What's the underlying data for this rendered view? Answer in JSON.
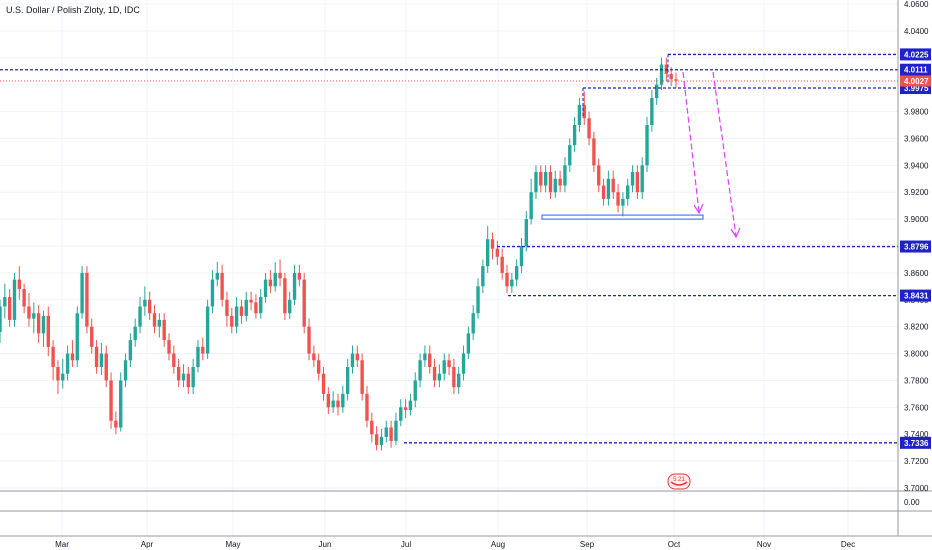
{
  "chart_data": {
    "type": "candlestick",
    "title": "U.S. Dollar / Polish Zloty, 1D, IDC",
    "ylim": [
      3.7,
      4.06
    ],
    "y_ticks": [
      "4.0600",
      "4.0400",
      "3.9800",
      "3.9600",
      "3.9400",
      "3.9200",
      "3.9000",
      "3.8600",
      "3.8400",
      "3.8200",
      "3.8000",
      "3.7800",
      "3.7600",
      "3.7400",
      "3.7200",
      "3.7000"
    ],
    "sub_tick": "0.00",
    "x_labels": [
      "Mar",
      "Apr",
      "May",
      "Jun",
      "Jul",
      "Aug",
      "Sep",
      "Oct",
      "Nov",
      "Dec"
    ],
    "current_price": "4.0027",
    "levels": [
      {
        "value": 4.0225,
        "label": "4.0225"
      },
      {
        "value": 4.0111,
        "label": "4.0111"
      },
      {
        "value": 3.9975,
        "label": "3.9975"
      },
      {
        "value": 3.8796,
        "label": "3.8796"
      },
      {
        "value": 3.8431,
        "label": "3.8431"
      },
      {
        "value": 3.7336,
        "label": "3.7336"
      }
    ],
    "support_box": {
      "low": 3.9,
      "high": 3.903
    },
    "event_label": "5 21",
    "candles": [
      [
        3.816,
        3.835,
        3.84,
        3.808
      ],
      [
        3.835,
        3.842,
        3.852,
        3.826
      ],
      [
        3.842,
        3.825,
        3.848,
        3.82
      ],
      [
        3.825,
        3.855,
        3.86,
        3.82
      ],
      [
        3.855,
        3.848,
        3.865,
        3.84
      ],
      [
        3.848,
        3.835,
        3.852,
        3.83
      ],
      [
        3.835,
        3.826,
        3.845,
        3.82
      ],
      [
        3.826,
        3.83,
        3.838,
        3.815
      ],
      [
        3.83,
        3.815,
        3.836,
        3.808
      ],
      [
        3.815,
        3.828,
        3.832,
        3.805
      ],
      [
        3.828,
        3.805,
        3.835,
        3.798
      ],
      [
        3.805,
        3.79,
        3.81,
        3.78
      ],
      [
        3.79,
        3.78,
        3.795,
        3.77
      ],
      [
        3.78,
        3.785,
        3.796,
        3.774
      ],
      [
        3.785,
        3.8,
        3.806,
        3.78
      ],
      [
        3.8,
        3.795,
        3.81,
        3.79
      ],
      [
        3.795,
        3.83,
        3.835,
        3.79
      ],
      [
        3.83,
        3.86,
        3.865,
        3.826
      ],
      [
        3.86,
        3.82,
        3.865,
        3.815
      ],
      [
        3.82,
        3.805,
        3.826,
        3.8
      ],
      [
        3.805,
        3.79,
        3.81,
        3.785
      ],
      [
        3.79,
        3.8,
        3.808,
        3.784
      ],
      [
        3.8,
        3.78,
        3.806,
        3.775
      ],
      [
        3.78,
        3.75,
        3.786,
        3.744
      ],
      [
        3.75,
        3.745,
        3.757,
        3.74
      ],
      [
        3.745,
        3.78,
        3.786,
        3.742
      ],
      [
        3.78,
        3.795,
        3.8,
        3.775
      ],
      [
        3.795,
        3.81,
        3.815,
        3.79
      ],
      [
        3.81,
        3.82,
        3.826,
        3.805
      ],
      [
        3.82,
        3.835,
        3.842,
        3.815
      ],
      [
        3.835,
        3.84,
        3.85,
        3.828
      ],
      [
        3.84,
        3.83,
        3.846,
        3.825
      ],
      [
        3.83,
        3.82,
        3.836,
        3.815
      ],
      [
        3.82,
        3.825,
        3.83,
        3.812
      ],
      [
        3.825,
        3.81,
        3.83,
        3.805
      ],
      [
        3.81,
        3.8,
        3.815,
        3.795
      ],
      [
        3.8,
        3.79,
        3.806,
        3.785
      ],
      [
        3.79,
        3.78,
        3.796,
        3.775
      ],
      [
        3.78,
        3.785,
        3.792,
        3.775
      ],
      [
        3.785,
        3.775,
        3.79,
        3.77
      ],
      [
        3.775,
        3.79,
        3.796,
        3.77
      ],
      [
        3.79,
        3.805,
        3.81,
        3.786
      ],
      [
        3.805,
        3.8,
        3.812,
        3.795
      ],
      [
        3.8,
        3.835,
        3.84,
        3.796
      ],
      [
        3.835,
        3.855,
        3.862,
        3.83
      ],
      [
        3.855,
        3.86,
        3.868,
        3.85
      ],
      [
        3.86,
        3.84,
        3.866,
        3.835
      ],
      [
        3.84,
        3.828,
        3.846,
        3.82
      ],
      [
        3.828,
        3.82,
        3.834,
        3.815
      ],
      [
        3.82,
        3.835,
        3.842,
        3.815
      ],
      [
        3.835,
        3.828,
        3.84,
        3.822
      ],
      [
        3.828,
        3.84,
        3.846,
        3.824
      ],
      [
        3.84,
        3.838,
        3.846,
        3.832
      ],
      [
        3.838,
        3.83,
        3.844,
        3.826
      ],
      [
        3.83,
        3.842,
        3.848,
        3.826
      ],
      [
        3.842,
        3.855,
        3.86,
        3.838
      ],
      [
        3.855,
        3.85,
        3.862,
        3.845
      ],
      [
        3.85,
        3.86,
        3.868,
        3.846
      ],
      [
        3.86,
        3.856,
        3.87,
        3.85
      ],
      [
        3.856,
        3.83,
        3.86,
        3.825
      ],
      [
        3.83,
        3.84,
        3.846,
        3.826
      ],
      [
        3.84,
        3.86,
        3.866,
        3.836
      ],
      [
        3.86,
        3.855,
        3.866,
        3.85
      ],
      [
        3.855,
        3.82,
        3.86,
        3.815
      ],
      [
        3.82,
        3.8,
        3.826,
        3.795
      ],
      [
        3.8,
        3.795,
        3.806,
        3.79
      ],
      [
        3.795,
        3.785,
        3.8,
        3.78
      ],
      [
        3.785,
        3.77,
        3.79,
        3.765
      ],
      [
        3.77,
        3.76,
        3.775,
        3.755
      ],
      [
        3.76,
        3.765,
        3.772,
        3.756
      ],
      [
        3.765,
        3.76,
        3.77,
        3.754
      ],
      [
        3.76,
        3.77,
        3.776,
        3.756
      ],
      [
        3.77,
        3.79,
        3.796,
        3.765
      ],
      [
        3.79,
        3.8,
        3.806,
        3.785
      ],
      [
        3.8,
        3.795,
        3.806,
        3.79
      ],
      [
        3.795,
        3.77,
        3.8,
        3.765
      ],
      [
        3.77,
        3.75,
        3.776,
        3.745
      ],
      [
        3.75,
        3.74,
        3.756,
        3.734
      ],
      [
        3.74,
        3.732,
        3.746,
        3.728
      ],
      [
        3.732,
        3.738,
        3.744,
        3.728
      ],
      [
        3.738,
        3.745,
        3.75,
        3.734
      ],
      [
        3.745,
        3.735,
        3.75,
        3.73
      ],
      [
        3.735,
        3.75,
        3.756,
        3.732
      ],
      [
        3.75,
        3.76,
        3.766,
        3.746
      ],
      [
        3.76,
        3.758,
        3.766,
        3.752
      ],
      [
        3.758,
        3.765,
        3.77,
        3.754
      ],
      [
        3.765,
        3.78,
        3.786,
        3.76
      ],
      [
        3.78,
        3.795,
        3.8,
        3.775
      ],
      [
        3.795,
        3.8,
        3.806,
        3.79
      ],
      [
        3.8,
        3.79,
        3.806,
        3.785
      ],
      [
        3.79,
        3.78,
        3.796,
        3.775
      ],
      [
        3.78,
        3.785,
        3.792,
        3.775
      ],
      [
        3.785,
        3.795,
        3.8,
        3.78
      ],
      [
        3.795,
        3.79,
        3.8,
        3.784
      ],
      [
        3.79,
        3.775,
        3.796,
        3.77
      ],
      [
        3.775,
        3.785,
        3.79,
        3.77
      ],
      [
        3.785,
        3.8,
        3.806,
        3.78
      ],
      [
        3.8,
        3.815,
        3.82,
        3.796
      ],
      [
        3.815,
        3.83,
        3.836,
        3.81
      ],
      [
        3.83,
        3.85,
        3.856,
        3.826
      ],
      [
        3.85,
        3.865,
        3.87,
        3.845
      ],
      [
        3.865,
        3.885,
        3.895,
        3.86
      ],
      [
        3.885,
        3.878,
        3.89,
        3.87
      ],
      [
        3.878,
        3.872,
        3.884,
        3.866
      ],
      [
        3.872,
        3.86,
        3.878,
        3.855
      ],
      [
        3.86,
        3.85,
        3.866,
        3.845
      ],
      [
        3.85,
        3.855,
        3.86,
        3.845
      ],
      [
        3.855,
        3.865,
        3.87,
        3.85
      ],
      [
        3.865,
        3.88,
        3.886,
        3.86
      ],
      [
        3.88,
        3.9,
        3.906,
        3.876
      ],
      [
        3.9,
        3.92,
        3.93,
        3.896
      ],
      [
        3.92,
        3.935,
        3.94,
        3.915
      ],
      [
        3.935,
        3.925,
        3.94,
        3.92
      ],
      [
        3.925,
        3.935,
        3.94,
        3.92
      ],
      [
        3.935,
        3.92,
        3.94,
        3.915
      ],
      [
        3.92,
        3.93,
        3.936,
        3.916
      ],
      [
        3.93,
        3.925,
        3.936,
        3.92
      ],
      [
        3.925,
        3.94,
        3.946,
        3.92
      ],
      [
        3.94,
        3.955,
        3.96,
        3.935
      ],
      [
        3.955,
        3.97,
        3.976,
        3.95
      ],
      [
        3.97,
        3.985,
        3.99,
        3.965
      ],
      [
        3.985,
        3.975,
        3.995,
        3.97
      ],
      [
        3.975,
        3.96,
        3.98,
        3.955
      ],
      [
        3.96,
        3.94,
        3.965,
        3.935
      ],
      [
        3.94,
        3.925,
        3.945,
        3.92
      ],
      [
        3.925,
        3.915,
        3.93,
        3.91
      ],
      [
        3.915,
        3.93,
        3.936,
        3.91
      ],
      [
        3.93,
        3.92,
        3.936,
        3.915
      ],
      [
        3.92,
        3.91,
        3.926,
        3.905
      ],
      [
        3.91,
        3.915,
        3.92,
        3.902
      ],
      [
        3.915,
        3.925,
        3.93,
        3.91
      ],
      [
        3.925,
        3.935,
        3.94,
        3.92
      ],
      [
        3.935,
        3.92,
        3.94,
        3.915
      ],
      [
        3.92,
        3.94,
        3.946,
        3.915
      ],
      [
        3.94,
        3.97,
        3.976,
        3.935
      ],
      [
        3.97,
        3.99,
        3.996,
        3.965
      ],
      [
        3.99,
        4.0,
        4.005,
        3.985
      ],
      [
        4.0,
        4.015,
        4.02,
        3.996
      ],
      [
        4.015,
        4.008,
        4.02,
        4.003
      ],
      [
        4.008,
        4.004,
        4.013,
        3.999
      ],
      [
        4.004,
        4.003,
        4.009,
        3.998
      ]
    ]
  }
}
